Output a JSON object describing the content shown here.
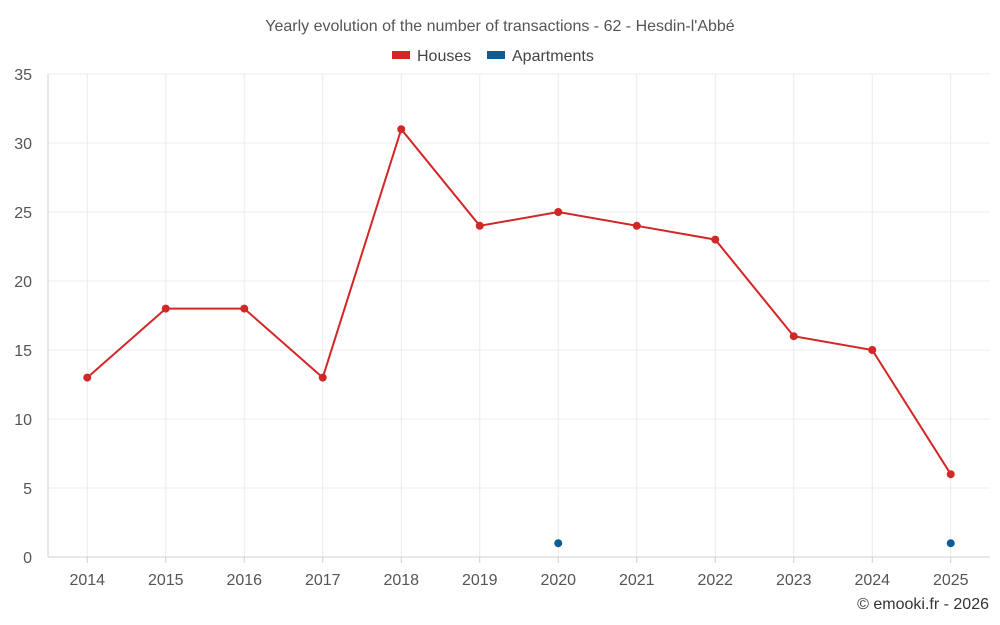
{
  "chart_data": {
    "type": "line",
    "title": "Yearly evolution of the number of transactions - 62 - Hesdin-l'Abbé",
    "categories": [
      "2014",
      "2015",
      "2016",
      "2017",
      "2018",
      "2019",
      "2020",
      "2021",
      "2022",
      "2023",
      "2024",
      "2025"
    ],
    "series": [
      {
        "name": "Houses",
        "color": "#d32626",
        "values": [
          13,
          18,
          18,
          13,
          31,
          24,
          25,
          24,
          23,
          16,
          15,
          6
        ]
      },
      {
        "name": "Apartments",
        "color": "#0b5e95",
        "values": [
          null,
          null,
          null,
          null,
          null,
          null,
          1,
          null,
          null,
          null,
          null,
          1
        ]
      }
    ],
    "ylim": [
      0,
      35
    ],
    "yticks": [
      "0",
      "5",
      "10",
      "15",
      "20",
      "25",
      "30",
      "35"
    ],
    "xlabel": "",
    "ylabel": "",
    "grid": true,
    "legend_position": "top-center"
  },
  "credit": "© emooki.fr - 2026"
}
